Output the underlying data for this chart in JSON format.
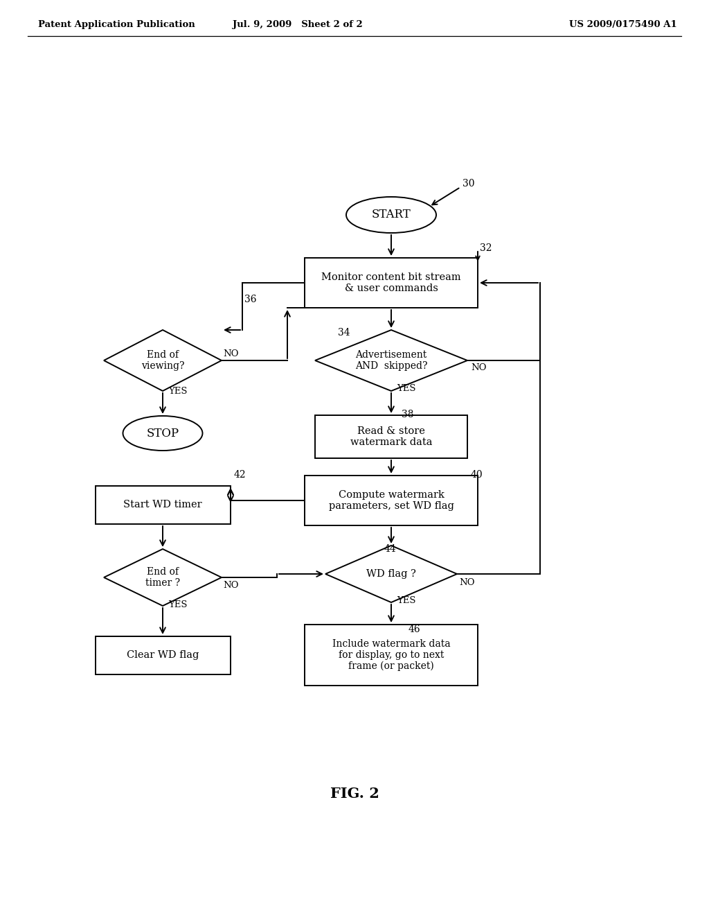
{
  "bg_color": "#ffffff",
  "header_left": "Patent Application Publication",
  "header_mid": "Jul. 9, 2009   Sheet 2 of 2",
  "header_right": "US 2009/0175490 A1",
  "fig_label": "FIG. 2"
}
